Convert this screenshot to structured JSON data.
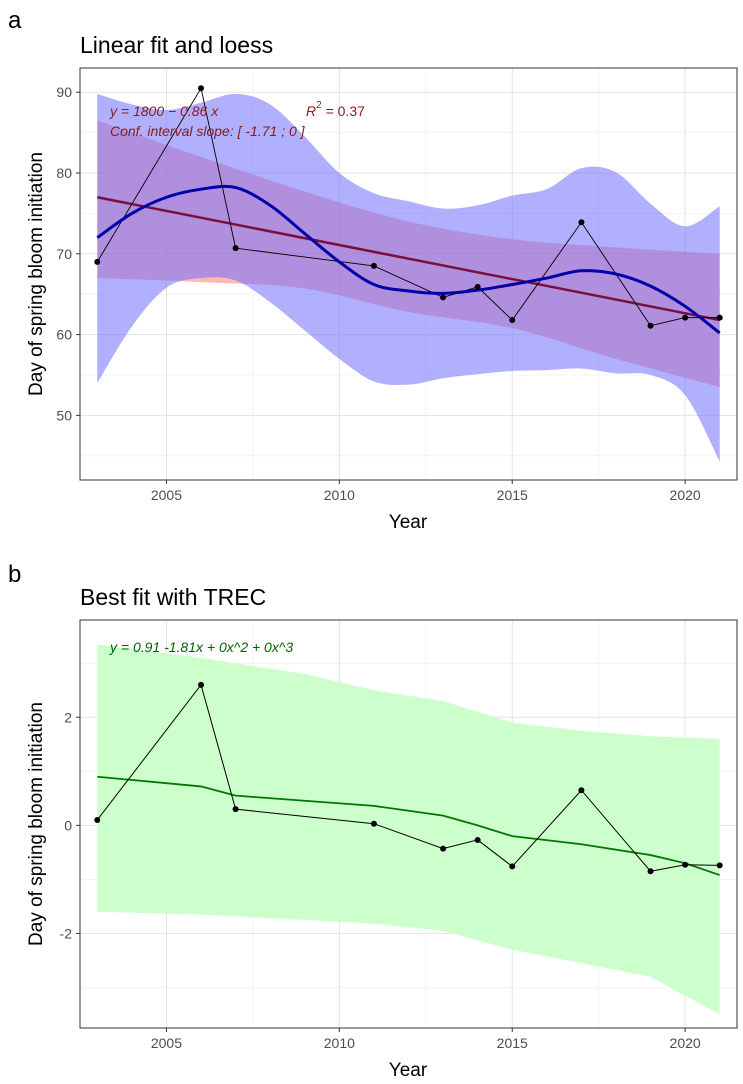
{
  "chart_data": [
    {
      "panel": "a",
      "type": "line",
      "title": "Linear fit and loess",
      "xlabel": "Year",
      "ylabel": "Day of spring bloom initiation",
      "xlim": [
        2002.5,
        2021.5
      ],
      "ylim": [
        42,
        93
      ],
      "xticks": [
        2005,
        2010,
        2015,
        2020
      ],
      "yticks": [
        50,
        60,
        70,
        80,
        90
      ],
      "grid": true,
      "annotations": {
        "equation": "y = 1800 − 0.86 x",
        "r2_label": "R",
        "r2_exponent": "2",
        "r2_value": " = 0.37",
        "conf_interval": "Conf. interval slope:  [ -1.71 ; 0 ]"
      },
      "colors": {
        "observed": "#000000",
        "linear": "#7a0f3c",
        "linear_band": "#ff6f6f",
        "loess": "#0000aa",
        "loess_band": "#6f6fff",
        "annotation": "#8b1a1a"
      },
      "series": [
        {
          "role": "observed",
          "x": [
            2003,
            2006,
            2007,
            2011,
            2013,
            2014,
            2015,
            2017,
            2019,
            2020,
            2021
          ],
          "y": [
            69,
            90.5,
            70.7,
            68.5,
            64.6,
            65.9,
            61.8,
            73.9,
            61.1,
            62.1,
            62.1
          ]
        },
        {
          "role": "linear_fit",
          "x": [
            2003,
            2021
          ],
          "y": [
            77,
            61.8
          ]
        },
        {
          "role": "linear_band",
          "x": [
            2003,
            2006,
            2009,
            2012,
            2015,
            2018,
            2021
          ],
          "upper": [
            86.5,
            82,
            77.7,
            74,
            71.8,
            70.8,
            70
          ],
          "lower": [
            67,
            66.5,
            65.7,
            62.8,
            60.8,
            57,
            53.5
          ]
        },
        {
          "role": "loess_fit",
          "x": [
            2003,
            2004,
            2005,
            2006,
            2007,
            2008,
            2009,
            2010,
            2011,
            2012,
            2013,
            2014,
            2015,
            2016,
            2017,
            2018,
            2019,
            2020,
            2021
          ],
          "y": [
            72,
            75,
            77,
            78,
            78.2,
            76,
            72.5,
            69,
            66.2,
            65.4,
            65.1,
            65.5,
            66.2,
            67,
            67.9,
            67.5,
            66,
            63.5,
            60.2
          ]
        },
        {
          "role": "loess_band",
          "x": [
            2003,
            2004,
            2005,
            2006,
            2007,
            2008,
            2009,
            2010,
            2011,
            2012,
            2013,
            2014,
            2015,
            2016,
            2017,
            2018,
            2019,
            2020,
            2021
          ],
          "upper": [
            89.8,
            88.5,
            87.8,
            88.7,
            89.8,
            88.5,
            84.5,
            80,
            77.5,
            76.5,
            75.6,
            76,
            77.2,
            78,
            80.6,
            80.1,
            76.2,
            73.4,
            75.9
          ],
          "lower": [
            54,
            61,
            65.8,
            67,
            66.7,
            64,
            60.5,
            57,
            54.2,
            53.8,
            54.6,
            55.1,
            55.5,
            55.6,
            55.8,
            55.2,
            55,
            52.5,
            44.3
          ]
        }
      ]
    },
    {
      "panel": "b",
      "type": "line",
      "title": "Best fit with TREC",
      "xlabel": "Year",
      "ylabel": "Day of spring bloom initiation",
      "xlim": [
        2002.5,
        2021.5
      ],
      "ylim": [
        -3.75,
        3.8
      ],
      "xticks": [
        2005,
        2010,
        2015,
        2020
      ],
      "yticks": [
        -2,
        0,
        2
      ],
      "grid": true,
      "annotations": {
        "equation": "y =  0.91   -1.81x  + 0x^2  + 0x^3"
      },
      "colors": {
        "observed": "#000000",
        "fit": "#007700",
        "band": "#ccffcc",
        "annotation": "#006400"
      },
      "series": [
        {
          "role": "observed",
          "x": [
            2003,
            2006,
            2007,
            2011,
            2013,
            2014,
            2015,
            2017,
            2019,
            2020,
            2021
          ],
          "y": [
            0.1,
            2.6,
            0.3,
            0.03,
            -0.43,
            -0.27,
            -0.76,
            0.65,
            -0.85,
            -0.73,
            -0.74
          ]
        },
        {
          "role": "fit",
          "x": [
            2003,
            2006,
            2007,
            2011,
            2013,
            2014,
            2015,
            2017,
            2019,
            2020,
            2021
          ],
          "y": [
            0.9,
            0.72,
            0.55,
            0.36,
            0.18,
            0.0,
            -0.2,
            -0.35,
            -0.55,
            -0.7,
            -0.92
          ]
        },
        {
          "role": "band",
          "x": [
            2003,
            2006,
            2009,
            2011,
            2013,
            2015,
            2017,
            2019,
            2021
          ],
          "upper": [
            3.35,
            3.1,
            2.8,
            2.5,
            2.3,
            1.9,
            1.75,
            1.65,
            1.6
          ],
          "lower": [
            -1.6,
            -1.65,
            -1.75,
            -1.82,
            -1.95,
            -2.3,
            -2.55,
            -2.8,
            -3.5
          ]
        }
      ]
    }
  ]
}
